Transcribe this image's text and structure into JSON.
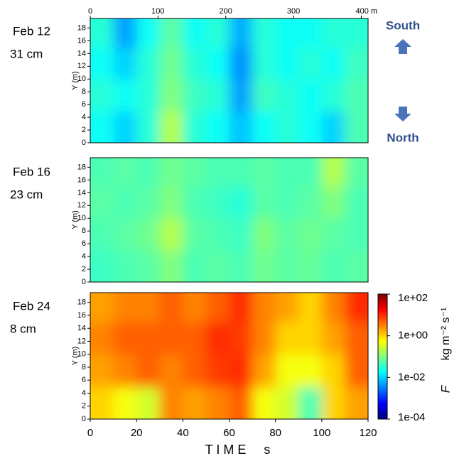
{
  "chart_data": [
    {
      "type": "heatmap",
      "label": "Feb 12",
      "depth": "31 cm",
      "ylabel": "Y (m)",
      "annotations": [
        "South",
        "North"
      ],
      "x2lim": [
        0,
        410
      ],
      "x2ticks": [
        0,
        100,
        200,
        300,
        {
          "value": 400,
          "label": "400 m"
        }
      ],
      "ylim": [
        0,
        19.5
      ],
      "yticks": [
        0,
        2,
        4,
        6,
        8,
        10,
        12,
        14,
        16,
        18
      ],
      "x_bins": [
        0,
        10,
        20,
        30,
        40,
        50,
        60,
        70,
        80,
        90,
        100,
        110,
        120
      ],
      "y_bins": [
        0,
        5,
        10,
        15,
        19.5
      ],
      "values": [
        [
          0.02,
          0.01,
          0.03,
          0.2,
          0.03,
          0.02,
          0.008,
          0.02,
          0.03,
          0.02,
          0.01,
          0.05
        ],
        [
          0.03,
          0.02,
          0.03,
          0.1,
          0.04,
          0.03,
          0.005,
          0.04,
          0.03,
          0.02,
          0.03,
          0.05
        ],
        [
          0.02,
          0.01,
          0.03,
          0.08,
          0.03,
          0.02,
          0.004,
          0.03,
          0.02,
          0.03,
          0.02,
          0.04
        ],
        [
          0.03,
          0.005,
          0.02,
          0.06,
          0.02,
          0.03,
          0.006,
          0.03,
          0.02,
          0.02,
          0.03,
          0.03
        ]
      ]
    },
    {
      "type": "heatmap",
      "label": "Feb 16",
      "depth": "23 cm",
      "ylabel": "Y (m)",
      "ylim": [
        0,
        19.5
      ],
      "yticks": [
        0,
        2,
        4,
        6,
        8,
        10,
        12,
        14,
        16,
        18
      ],
      "x_bins": [
        0,
        10,
        20,
        30,
        40,
        50,
        60,
        70,
        80,
        90,
        100,
        110,
        120
      ],
      "y_bins": [
        0,
        5,
        10,
        15,
        19.5
      ],
      "values": [
        [
          0.04,
          0.05,
          0.06,
          0.1,
          0.05,
          0.06,
          0.05,
          0.08,
          0.06,
          0.07,
          0.05,
          0.06
        ],
        [
          0.05,
          0.06,
          0.08,
          0.2,
          0.06,
          0.05,
          0.04,
          0.1,
          0.06,
          0.08,
          0.06,
          0.05
        ],
        [
          0.06,
          0.05,
          0.06,
          0.1,
          0.05,
          0.04,
          0.03,
          0.06,
          0.05,
          0.06,
          0.1,
          0.05
        ],
        [
          0.05,
          0.06,
          0.05,
          0.08,
          0.06,
          0.05,
          0.05,
          0.06,
          0.05,
          0.05,
          0.2,
          0.06
        ]
      ]
    },
    {
      "type": "heatmap",
      "label": "Feb 24",
      "depth": "8 cm",
      "ylabel": "Y (m)",
      "xlabel": "T I M E     s",
      "xlim": [
        0,
        120
      ],
      "xticks": [
        0,
        20,
        40,
        60,
        80,
        100,
        120
      ],
      "ylim": [
        0,
        19.5
      ],
      "yticks": [
        0,
        2,
        4,
        6,
        8,
        10,
        12,
        14,
        16,
        18
      ],
      "x_bins": [
        0,
        10,
        20,
        30,
        40,
        50,
        60,
        70,
        80,
        90,
        100,
        110,
        120
      ],
      "y_bins": [
        0,
        5,
        10,
        15,
        19.5
      ],
      "values": [
        [
          1,
          0.5,
          0.3,
          3,
          2,
          3,
          5,
          0.5,
          0.3,
          0.05,
          1,
          2
        ],
        [
          2,
          3,
          5,
          3,
          5,
          8,
          10,
          2,
          0.5,
          0.5,
          1,
          5
        ],
        [
          3,
          5,
          5,
          5,
          5,
          10,
          8,
          3,
          1,
          1,
          2,
          5
        ],
        [
          2,
          3,
          3,
          5,
          3,
          5,
          10,
          3,
          2,
          1,
          3,
          10
        ]
      ],
      "colorbar": {
        "symbol": "F",
        "unit": "kg m⁻² s⁻¹",
        "log_scale": true,
        "clim": [
          0.0001,
          100
        ],
        "ticks": [
          {
            "value": 100,
            "label": "1e+02"
          },
          {
            "value": 1,
            "label": "1e+00"
          },
          {
            "value": 0.01,
            "label": "1e-02"
          },
          {
            "value": 0.0001,
            "label": "1e-04"
          }
        ]
      }
    }
  ]
}
